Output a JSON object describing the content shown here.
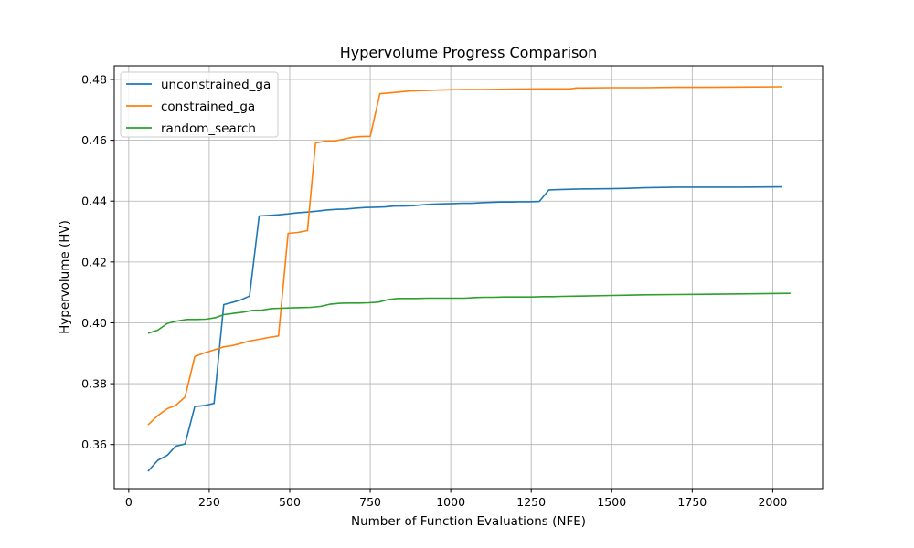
{
  "chart_data": {
    "type": "line",
    "title": "Hypervolume Progress Comparison",
    "xlabel": "Number of Function Evaluations (NFE)",
    "ylabel": "Hypervolume (HV)",
    "xlim": [
      -45,
      2155
    ],
    "ylim": [
      0.3455,
      0.4845
    ],
    "xticks": [
      0,
      250,
      500,
      750,
      1000,
      1250,
      1500,
      1750,
      2000
    ],
    "yticks": [
      0.36,
      0.38,
      0.4,
      0.42,
      0.44,
      0.46,
      0.48
    ],
    "xtick_labels": [
      "0",
      "250",
      "500",
      "750",
      "1000",
      "1250",
      "1500",
      "1750",
      "2000"
    ],
    "ytick_labels": [
      "0.36",
      "0.38",
      "0.40",
      "0.42",
      "0.44",
      "0.46",
      "0.48"
    ],
    "grid": true,
    "legend_position": "top-left",
    "series": [
      {
        "name": "unconstrained_ga",
        "color": "#1f77b4",
        "x": [
          60,
          90,
          120,
          145,
          175,
          205,
          235,
          265,
          295,
          325,
          350,
          375,
          405,
          435,
          465,
          495,
          525,
          555,
          585,
          615,
          645,
          675,
          705,
          735,
          765,
          795,
          825,
          855,
          885,
          915,
          945,
          975,
          1005,
          1035,
          1065,
          1095,
          1125,
          1155,
          1185,
          1215,
          1245,
          1275,
          1305,
          1335,
          1400,
          1500,
          1550,
          1600,
          1700,
          1800,
          1900,
          2030
        ],
        "y": [
          0.3512,
          0.3548,
          0.3565,
          0.3594,
          0.3602,
          0.3725,
          0.3728,
          0.3735,
          0.406,
          0.4068,
          0.4076,
          0.4088,
          0.4351,
          0.4353,
          0.4355,
          0.4358,
          0.4362,
          0.4364,
          0.4367,
          0.4371,
          0.4373,
          0.4374,
          0.4377,
          0.4379,
          0.438,
          0.4381,
          0.4384,
          0.4384,
          0.4385,
          0.4388,
          0.439,
          0.4391,
          0.4392,
          0.4393,
          0.4393,
          0.4395,
          0.4396,
          0.4397,
          0.4397,
          0.4398,
          0.4398,
          0.4399,
          0.4437,
          0.4438,
          0.444,
          0.4441,
          0.4442,
          0.4444,
          0.4446,
          0.4446,
          0.4446,
          0.4447
        ]
      },
      {
        "name": "constrained_ga",
        "color": "#ff7f0e",
        "x": [
          60,
          90,
          120,
          145,
          175,
          205,
          235,
          265,
          295,
          325,
          350,
          375,
          405,
          435,
          465,
          495,
          525,
          555,
          580,
          610,
          640,
          665,
          695,
          720,
          750,
          780,
          815,
          845,
          875,
          905,
          935,
          965,
          1000,
          1040,
          1100,
          1200,
          1300,
          1370,
          1390,
          1500,
          1600,
          1700,
          1800,
          1900,
          2030
        ],
        "y": [
          0.3665,
          0.3695,
          0.3718,
          0.3728,
          0.3756,
          0.3889,
          0.3901,
          0.3911,
          0.3921,
          0.3926,
          0.3933,
          0.394,
          0.3946,
          0.3952,
          0.3957,
          0.4294,
          0.4297,
          0.4303,
          0.4591,
          0.4597,
          0.4598,
          0.4603,
          0.461,
          0.4612,
          0.4613,
          0.4753,
          0.4756,
          0.4759,
          0.4762,
          0.4763,
          0.4764,
          0.4765,
          0.4766,
          0.4767,
          0.4767,
          0.4768,
          0.4769,
          0.4769,
          0.4772,
          0.4773,
          0.4773,
          0.4774,
          0.4774,
          0.4775,
          0.4776
        ]
      },
      {
        "name": "random_search",
        "color": "#2ca02c",
        "x": [
          60,
          90,
          120,
          150,
          180,
          210,
          240,
          270,
          295,
          325,
          355,
          385,
          415,
          445,
          475,
          505,
          535,
          565,
          595,
          625,
          655,
          685,
          715,
          745,
          775,
          805,
          835,
          865,
          895,
          925,
          955,
          985,
          1015,
          1045,
          1075,
          1105,
          1135,
          1165,
          1195,
          1225,
          1255,
          1285,
          1315,
          1345,
          1400,
          1500,
          1550,
          1600,
          1700,
          1800,
          1900,
          2055
        ],
        "y": [
          0.3966,
          0.3976,
          0.3998,
          0.4006,
          0.4011,
          0.4011,
          0.4012,
          0.4017,
          0.4027,
          0.4031,
          0.4035,
          0.4041,
          0.4042,
          0.4047,
          0.4048,
          0.4049,
          0.405,
          0.4051,
          0.4054,
          0.4061,
          0.4064,
          0.4065,
          0.4065,
          0.4066,
          0.4068,
          0.4076,
          0.408,
          0.408,
          0.408,
          0.4081,
          0.4081,
          0.4081,
          0.4081,
          0.4081,
          0.4083,
          0.4084,
          0.4084,
          0.4085,
          0.4085,
          0.4085,
          0.4085,
          0.4086,
          0.4086,
          0.4087,
          0.4088,
          0.409,
          0.4091,
          0.4092,
          0.4093,
          0.4094,
          0.4095,
          0.4097
        ]
      }
    ]
  }
}
